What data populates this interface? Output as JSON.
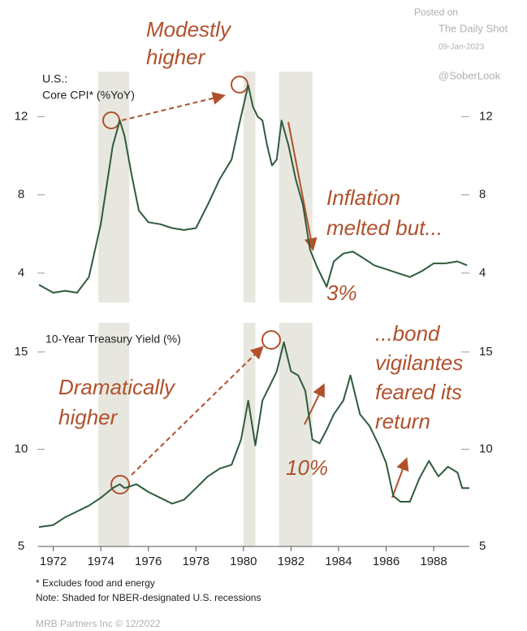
{
  "header": {
    "posted": "Posted on",
    "source": "The Daily Shot",
    "date": "09-Jan-2023",
    "handle": "@SoberLook"
  },
  "recessions": [
    [
      1973.9,
      1975.2
    ],
    [
      1980.0,
      1980.5
    ],
    [
      1981.5,
      1982.9
    ]
  ],
  "chart_data": [
    {
      "type": "line",
      "subtitle": "U.S.:",
      "title": "Core CPI* (%YoY)",
      "xlim": [
        1971.4,
        1989.5
      ],
      "ylim": [
        2.5,
        14.3
      ],
      "yticks": [
        4,
        8,
        12
      ],
      "series": [
        {
          "name": "Core CPI",
          "color": "#2f5b3c",
          "x": [
            1971.4,
            1972,
            1972.5,
            1973,
            1973.5,
            1974,
            1974.5,
            1974.8,
            1975,
            1975.3,
            1975.6,
            1976,
            1976.5,
            1977,
            1977.5,
            1978,
            1978.5,
            1979,
            1979.5,
            1979.8,
            1980.2,
            1980.4,
            1980.6,
            1980.8,
            1981,
            1981.2,
            1981.4,
            1981.6,
            1981.9,
            1982.2,
            1982.5,
            1982.8,
            1983.1,
            1983.5,
            1983.8,
            1984.2,
            1984.6,
            1985,
            1985.5,
            1986,
            1986.5,
            1987,
            1987.5,
            1988,
            1988.5,
            1989,
            1989.4
          ],
          "values": [
            3.4,
            3.0,
            3.1,
            3.0,
            3.8,
            6.5,
            10.5,
            11.8,
            11.0,
            9.0,
            7.2,
            6.6,
            6.5,
            6.3,
            6.2,
            6.3,
            7.5,
            8.8,
            9.8,
            11.5,
            13.6,
            12.5,
            12.0,
            11.8,
            10.5,
            9.5,
            9.8,
            11.8,
            10.5,
            8.8,
            7.5,
            5.2,
            4.3,
            3.3,
            4.6,
            5.0,
            5.1,
            4.8,
            4.4,
            4.2,
            4.0,
            3.8,
            4.1,
            4.5,
            4.5,
            4.6,
            4.4
          ]
        }
      ],
      "annotations": [
        [
          "Modestly",
          "higher"
        ],
        [
          "Inflation",
          "melted but..."
        ],
        [
          "3%"
        ]
      ]
    },
    {
      "type": "line",
      "title": "10-Year Treasury Yield (%)",
      "xlim": [
        1971.4,
        1989.5
      ],
      "xticks": [
        1972,
        1974,
        1976,
        1978,
        1980,
        1982,
        1984,
        1986,
        1988
      ],
      "ylim": [
        5,
        16.5
      ],
      "yticks": [
        5,
        10,
        15
      ],
      "series": [
        {
          "name": "10-Year Treasury Yield",
          "color": "#2f5b3c",
          "x": [
            1971.4,
            1972,
            1972.5,
            1973,
            1973.5,
            1974,
            1974.5,
            1974.8,
            1975,
            1975.5,
            1976,
            1976.5,
            1977,
            1977.5,
            1978,
            1978.5,
            1979,
            1979.5,
            1979.9,
            1980.2,
            1980.5,
            1980.8,
            1981,
            1981.4,
            1981.7,
            1982,
            1982.3,
            1982.6,
            1982.9,
            1983.2,
            1983.5,
            1983.8,
            1984.2,
            1984.5,
            1984.9,
            1985.3,
            1985.7,
            1986,
            1986.3,
            1986.6,
            1987,
            1987.4,
            1987.8,
            1988.2,
            1988.6,
            1989,
            1989.2,
            1989.5
          ],
          "values": [
            6.0,
            6.1,
            6.5,
            6.8,
            7.1,
            7.5,
            8.0,
            8.2,
            8.0,
            8.2,
            7.8,
            7.5,
            7.2,
            7.4,
            8.0,
            8.6,
            9.0,
            9.2,
            10.5,
            12.5,
            10.2,
            12.5,
            13.0,
            14.0,
            15.5,
            14.0,
            13.8,
            13.0,
            10.5,
            10.3,
            11.0,
            11.8,
            12.5,
            13.8,
            11.8,
            11.2,
            10.2,
            9.3,
            7.6,
            7.3,
            7.3,
            8.5,
            9.4,
            8.6,
            9.1,
            8.8,
            8.0,
            8.0
          ]
        }
      ],
      "annotations": [
        [
          "Dramatically",
          "higher"
        ],
        [
          "10%"
        ],
        [
          "...bond",
          "vigilantes",
          "feared its",
          "return"
        ]
      ]
    }
  ],
  "footnotes": [
    "* Excludes food and energy",
    "Note: Shaded for NBER-designated U.S. recessions"
  ],
  "credit": "MRB Partners Inc © 12/2022"
}
